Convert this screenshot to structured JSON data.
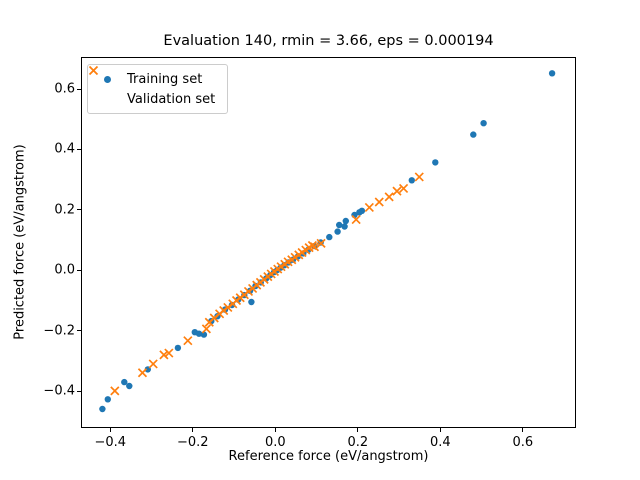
{
  "chart_data": {
    "type": "scatter",
    "title": "Evaluation 140, rmin = 3.66, eps = 0.000194",
    "xlabel": "Reference force (eV/angstrom)",
    "ylabel": "Predicted force (eV/angstrom)",
    "xlim": [
      -0.471,
      0.729
    ],
    "ylim": [
      -0.522,
      0.706
    ],
    "grid": false,
    "x_ticks": [
      -0.4,
      -0.2,
      0.0,
      0.2,
      0.4,
      0.6
    ],
    "x_tick_labels": [
      "−0.4",
      "−0.2",
      "0.0",
      "0.2",
      "0.4",
      "0.6"
    ],
    "y_ticks": [
      0.6,
      0.4,
      0.2,
      0.0,
      -0.2,
      -0.4
    ],
    "y_tick_labels": [
      "0.6",
      "0.4",
      "0.2",
      "0.0",
      "−0.2",
      "−0.4"
    ],
    "legend": {
      "position": "upper left",
      "entries": [
        {
          "label": "Training set",
          "marker": "dot",
          "color": "#1f77b4"
        },
        {
          "label": "Validation set",
          "marker": "x",
          "color": "#ff7f0e"
        }
      ]
    },
    "series": [
      {
        "name": "Training set",
        "marker": "dot",
        "color": "#1f77b4",
        "points": [
          [
            -0.419,
            -0.459
          ],
          [
            -0.406,
            -0.427
          ],
          [
            -0.366,
            -0.37
          ],
          [
            -0.354,
            -0.383
          ],
          [
            -0.309,
            -0.328
          ],
          [
            -0.236,
            -0.257
          ],
          [
            -0.195,
            -0.205
          ],
          [
            -0.185,
            -0.21
          ],
          [
            -0.173,
            -0.213
          ],
          [
            -0.155,
            -0.168
          ],
          [
            -0.14,
            -0.152
          ],
          [
            -0.122,
            -0.13
          ],
          [
            -0.105,
            -0.115
          ],
          [
            -0.09,
            -0.097
          ],
          [
            -0.075,
            -0.082
          ],
          [
            -0.061,
            -0.068
          ],
          [
            -0.058,
            -0.105
          ],
          [
            -0.048,
            -0.052
          ],
          [
            -0.035,
            -0.04
          ],
          [
            -0.022,
            -0.027
          ],
          [
            -0.012,
            -0.016
          ],
          [
            -0.003,
            -0.006
          ],
          [
            0.005,
            0.001
          ],
          [
            0.013,
            0.009
          ],
          [
            0.022,
            0.017
          ],
          [
            0.032,
            0.026
          ],
          [
            0.043,
            0.035
          ],
          [
            0.055,
            0.046
          ],
          [
            0.068,
            0.056
          ],
          [
            0.08,
            0.068
          ],
          [
            0.095,
            0.08
          ],
          [
            0.11,
            0.092
          ],
          [
            0.131,
            0.11
          ],
          [
            0.151,
            0.128
          ],
          [
            0.155,
            0.15
          ],
          [
            0.168,
            0.145
          ],
          [
            0.171,
            0.163
          ],
          [
            0.192,
            0.183
          ],
          [
            0.204,
            0.192
          ],
          [
            0.21,
            0.197
          ],
          [
            0.331,
            0.298
          ],
          [
            0.388,
            0.357
          ],
          [
            0.48,
            0.449
          ],
          [
            0.505,
            0.487
          ],
          [
            0.671,
            0.652
          ]
        ]
      },
      {
        "name": "Validation set",
        "marker": "x",
        "color": "#ff7f0e",
        "points": [
          [
            -0.389,
            -0.399
          ],
          [
            -0.322,
            -0.339
          ],
          [
            -0.296,
            -0.31
          ],
          [
            -0.27,
            -0.28
          ],
          [
            -0.258,
            -0.274
          ],
          [
            -0.212,
            -0.233
          ],
          [
            -0.167,
            -0.194
          ],
          [
            -0.16,
            -0.172
          ],
          [
            -0.148,
            -0.158
          ],
          [
            -0.135,
            -0.144
          ],
          [
            -0.125,
            -0.133
          ],
          [
            -0.115,
            -0.123
          ],
          [
            -0.103,
            -0.111
          ],
          [
            -0.094,
            -0.1
          ],
          [
            -0.085,
            -0.091
          ],
          [
            -0.075,
            -0.081
          ],
          [
            -0.065,
            -0.07
          ],
          [
            -0.055,
            -0.06
          ],
          [
            -0.045,
            -0.049
          ],
          [
            -0.036,
            -0.04
          ],
          [
            -0.027,
            -0.03
          ],
          [
            -0.018,
            -0.021
          ],
          [
            -0.01,
            -0.012
          ],
          [
            -0.002,
            -0.004
          ],
          [
            0.006,
            0.004
          ],
          [
            0.014,
            0.012
          ],
          [
            0.023,
            0.02
          ],
          [
            0.031,
            0.028
          ],
          [
            0.04,
            0.035
          ],
          [
            0.048,
            0.043
          ],
          [
            0.057,
            0.051
          ],
          [
            0.065,
            0.059
          ],
          [
            0.074,
            0.067
          ],
          [
            0.082,
            0.075
          ],
          [
            0.09,
            0.082
          ],
          [
            0.095,
            0.078
          ],
          [
            0.111,
            0.089
          ],
          [
            0.196,
            0.168
          ],
          [
            0.228,
            0.208
          ],
          [
            0.252,
            0.226
          ],
          [
            0.276,
            0.243
          ],
          [
            0.295,
            0.262
          ],
          [
            0.311,
            0.271
          ],
          [
            0.349,
            0.309
          ]
        ]
      }
    ]
  }
}
